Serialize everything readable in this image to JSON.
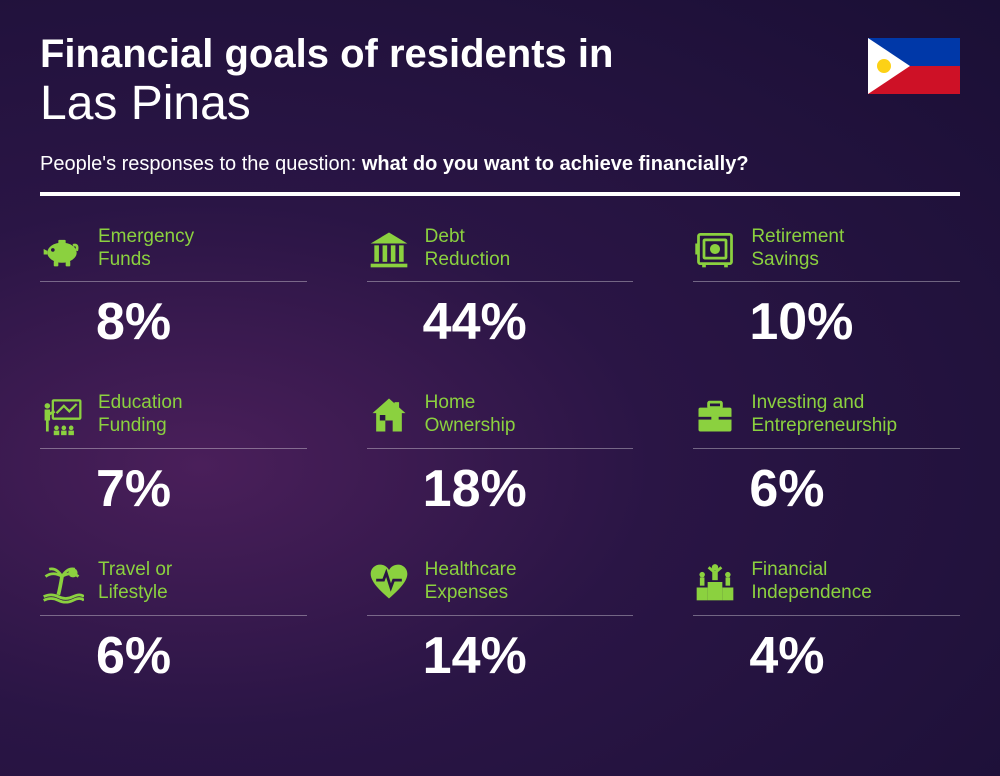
{
  "title": {
    "line1": "Financial goals of residents in",
    "line2": "Las Pinas"
  },
  "subtitle": {
    "prefix": "People's responses to the question: ",
    "bold": "what do you want to achieve financially?"
  },
  "styling": {
    "accent_color": "#8BD13F",
    "text_color": "#ffffff",
    "background_gradient": [
      "#4a1f5a",
      "#2a1545",
      "#1a0f35"
    ],
    "title_fontsize_line1": 40,
    "title_fontsize_line2": 48,
    "title_weight_line1": 800,
    "title_weight_line2": 300,
    "subtitle_fontsize": 20,
    "label_fontsize": 19,
    "value_fontsize": 52,
    "value_weight": 800,
    "divider_color": "#ffffff",
    "divider_height": 4,
    "grid_columns": 3,
    "column_gap": 60,
    "row_gap": 40,
    "card_border_color": "rgba(255,255,255,0.35)"
  },
  "flag": {
    "country": "Philippines",
    "colors": {
      "blue": "#0038A8",
      "red": "#CE1126",
      "white": "#ffffff",
      "yellow": "#FCD116"
    }
  },
  "items": [
    {
      "icon": "piggy-bank",
      "label": "Emergency\nFunds",
      "value": "8%"
    },
    {
      "icon": "bank",
      "label": "Debt\nReduction",
      "value": "44%"
    },
    {
      "icon": "safe",
      "label": "Retirement\nSavings",
      "value": "10%"
    },
    {
      "icon": "presentation",
      "label": "Education\nFunding",
      "value": "7%"
    },
    {
      "icon": "house",
      "label": "Home\nOwnership",
      "value": "18%"
    },
    {
      "icon": "briefcase",
      "label": "Investing and\nEntrepreneurship",
      "value": "6%"
    },
    {
      "icon": "palm-tree",
      "label": "Travel or\nLifestyle",
      "value": "6%"
    },
    {
      "icon": "heart-pulse",
      "label": "Healthcare\nExpenses",
      "value": "14%"
    },
    {
      "icon": "podium",
      "label": "Financial\nIndependence",
      "value": "4%"
    }
  ]
}
